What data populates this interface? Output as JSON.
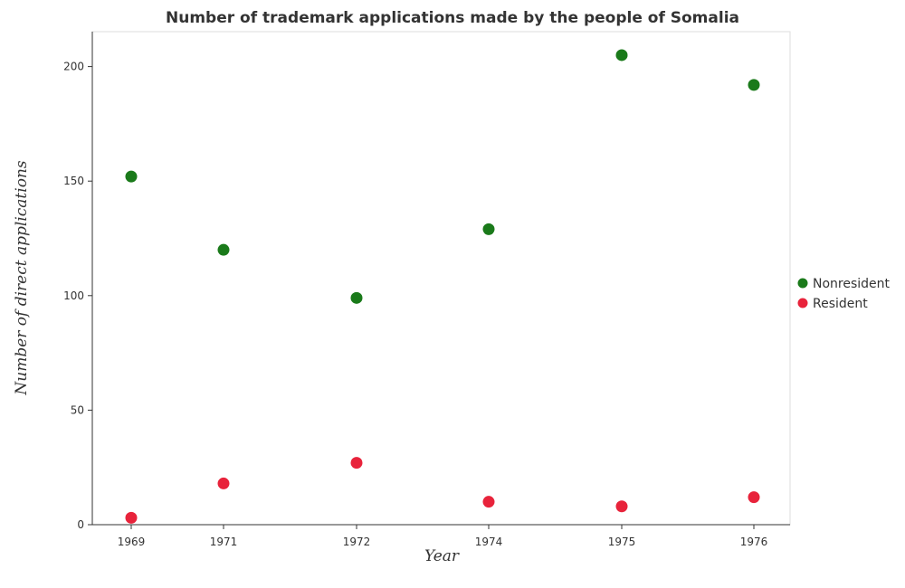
{
  "chart_data": {
    "type": "scatter",
    "title": "Number of trademark applications made by the people of Somalia",
    "xlabel": "Year",
    "ylabel": "Number of direct applications",
    "categories": [
      "1969",
      "1971",
      "1972",
      "1974",
      "1975",
      "1976"
    ],
    "yticks": [
      "0",
      "50",
      "100",
      "150",
      "200"
    ],
    "ylim": [
      0,
      215
    ],
    "grid": false,
    "legend_position": "right",
    "series": [
      {
        "name": "Nonresident",
        "color": "#1a7a1a",
        "values": [
          152,
          120,
          99,
          129,
          205,
          192
        ]
      },
      {
        "name": "Resident",
        "color": "#e8233b",
        "values": [
          3,
          18,
          27,
          10,
          8,
          12
        ]
      }
    ]
  }
}
